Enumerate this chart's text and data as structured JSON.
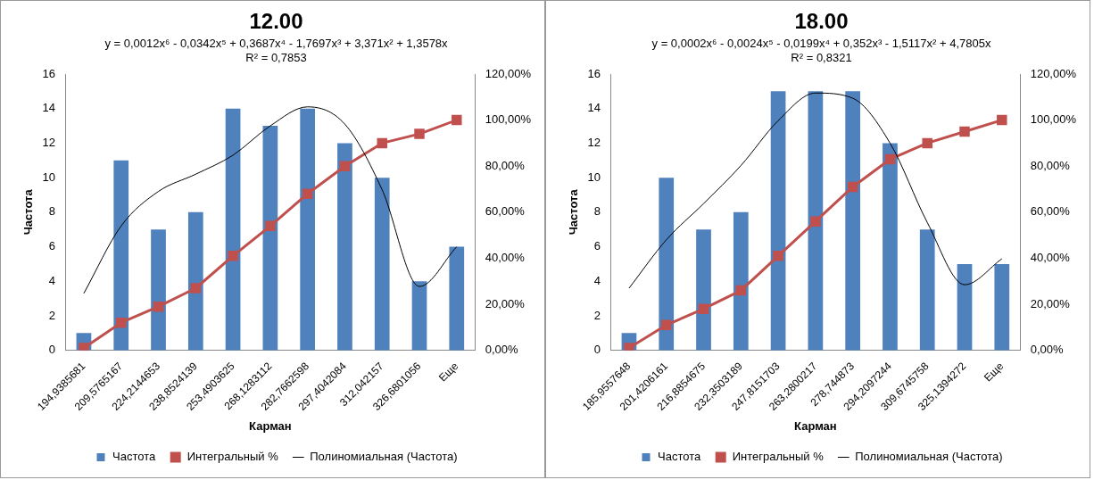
{
  "chart_data": [
    {
      "type": "bar",
      "title": "12.00",
      "annotations": [
        "y = 0,0012x⁶ - 0,0342x⁵ + 0,3687x⁴ - 1,7697x³ + 3,371x² + 1,3578x",
        "R² = 0,7853"
      ],
      "xlabel": "Карман",
      "ylabel": "Частота",
      "categories": [
        "194,9385681",
        "209,5765167",
        "224,2144653",
        "238,8524139",
        "253,4903625",
        "268,1283112",
        "282,7662598",
        "297,4042084",
        "312,042157",
        "326,6801056",
        "Еще"
      ],
      "series": [
        {
          "name": "Частота",
          "color": "#4f81bd",
          "values": [
            1,
            11,
            7,
            8,
            14,
            13,
            14,
            12,
            10,
            4,
            6
          ]
        },
        {
          "name": "Интегральный %",
          "type": "line",
          "axis": "y2",
          "color": "#c0504d",
          "marker": "square",
          "values": [
            1,
            12,
            19,
            27,
            41,
            54,
            68,
            80,
            90,
            94,
            100
          ]
        },
        {
          "name": "Полиномиальная (Частота)",
          "type": "line",
          "color": "#000000",
          "marker": "none",
          "values": [
            3.3,
            7.2,
            9.2,
            10.2,
            11.3,
            13,
            14.1,
            13.1,
            9.3,
            3.7,
            6
          ]
        }
      ],
      "ylim": [
        0,
        16
      ],
      "yticks": [
        0,
        2,
        4,
        6,
        8,
        10,
        12,
        14,
        16
      ],
      "y2lim": [
        0,
        120
      ],
      "y2ticks": [
        {
          "value": 0,
          "label": "0,00%"
        },
        {
          "value": 20,
          "label": "20,00%"
        },
        {
          "value": 40,
          "label": "40,00%"
        },
        {
          "value": 60,
          "label": "60,00%"
        },
        {
          "value": 80,
          "label": "80,00%"
        },
        {
          "value": 100,
          "label": "100,00%"
        },
        {
          "value": 120,
          "label": "120,00%"
        }
      ],
      "grid": false,
      "legend": "bottom"
    },
    {
      "type": "bar",
      "title": "18.00",
      "annotations": [
        "y = 0,0002x⁶ - 0,0024x⁵ - 0,0199x⁴ + 0,352x³ - 1,5117x² + 4,7805x",
        "R² = 0,8321"
      ],
      "xlabel": "Карман",
      "ylabel": "Частота",
      "categories": [
        "185,9557648",
        "201,4206161",
        "216,8854675",
        "232,3503189",
        "247,8151703",
        "263,2800217",
        "278,744873",
        "294,2097244",
        "309,6745758",
        "325,1394272",
        "Еще"
      ],
      "series": [
        {
          "name": "Частота",
          "color": "#4f81bd",
          "values": [
            1,
            10,
            7,
            8,
            15,
            15,
            15,
            12,
            7,
            5,
            5
          ]
        },
        {
          "name": "Интегральный %",
          "type": "line",
          "axis": "y2",
          "color": "#c0504d",
          "marker": "square",
          "values": [
            1,
            11,
            18,
            26,
            41,
            56,
            71,
            83,
            90,
            95,
            100
          ]
        },
        {
          "name": "Полиномиальная (Частота)",
          "type": "line",
          "color": "#000000",
          "marker": "none",
          "values": [
            3.6,
            6.4,
            8.5,
            10.7,
            13.3,
            14.9,
            14.6,
            12,
            7.4,
            3.8,
            5.3
          ]
        }
      ],
      "ylim": [
        0,
        16
      ],
      "yticks": [
        0,
        2,
        4,
        6,
        8,
        10,
        12,
        14,
        16
      ],
      "y2lim": [
        0,
        120
      ],
      "y2ticks": [
        {
          "value": 0,
          "label": "0,00%"
        },
        {
          "value": 20,
          "label": "20,00%"
        },
        {
          "value": 40,
          "label": "40,00%"
        },
        {
          "value": 60,
          "label": "60,00%"
        },
        {
          "value": 80,
          "label": "80,00%"
        },
        {
          "value": 100,
          "label": "100,00%"
        },
        {
          "value": 120,
          "label": "120,00%"
        }
      ],
      "grid": false,
      "legend": "bottom"
    }
  ]
}
